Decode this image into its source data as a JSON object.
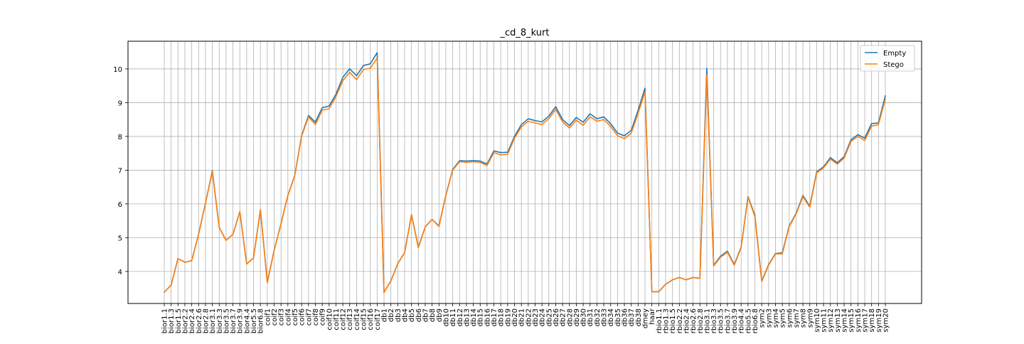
{
  "chart_data": {
    "type": "line",
    "title": "_cd_8_kurt",
    "xlabel": "",
    "ylabel": "",
    "ylim": [
      3.05,
      10.82
    ],
    "yticks": [
      4,
      5,
      6,
      7,
      8,
      9,
      10
    ],
    "grid": true,
    "legend_position": "top-right",
    "categories": [
      "bior1.1",
      "bior1.3",
      "bior1.5",
      "bior2.2",
      "bior2.4",
      "bior2.6",
      "bior2.8",
      "bior3.1",
      "bior3.3",
      "bior3.5",
      "bior3.7",
      "bior3.9",
      "bior4.4",
      "bior5.5",
      "bior6.8",
      "coif1",
      "coif2",
      "coif3",
      "coif4",
      "coif5",
      "coif6",
      "coif7",
      "coif8",
      "coif9",
      "coif10",
      "coif11",
      "coif12",
      "coif13",
      "coif14",
      "coif15",
      "coif16",
      "coif17",
      "db1",
      "db2",
      "db3",
      "db4",
      "db5",
      "db6",
      "db7",
      "db8",
      "db9",
      "db10",
      "db11",
      "db12",
      "db13",
      "db14",
      "db15",
      "db16",
      "db17",
      "db18",
      "db19",
      "db20",
      "db21",
      "db22",
      "db23",
      "db24",
      "db25",
      "db26",
      "db27",
      "db28",
      "db29",
      "db30",
      "db31",
      "db32",
      "db33",
      "db34",
      "db35",
      "db36",
      "db37",
      "db38",
      "dmey",
      "haar",
      "rbio1.1",
      "rbio1.3",
      "rbio1.5",
      "rbio2.2",
      "rbio2.4",
      "rbio2.6",
      "rbio2.8",
      "rbio3.1",
      "rbio3.3",
      "rbio3.5",
      "rbio3.7",
      "rbio3.9",
      "rbio4.4",
      "rbio5.5",
      "rbio6.8",
      "sym2",
      "sym3",
      "sym4",
      "sym5",
      "sym6",
      "sym7",
      "sym8",
      "sym9",
      "sym10",
      "sym11",
      "sym12",
      "sym13",
      "sym14",
      "sym15",
      "sym16",
      "sym17",
      "sym18",
      "sym19",
      "sym20"
    ],
    "series": [
      {
        "name": "Empty",
        "color": "#1f77b4",
        "values": [
          3.38,
          3.6,
          4.38,
          4.27,
          4.32,
          5.1,
          6.02,
          6.98,
          5.3,
          4.92,
          5.1,
          5.77,
          4.22,
          4.4,
          5.83,
          3.68,
          4.62,
          5.42,
          6.25,
          6.84,
          8.02,
          8.62,
          8.42,
          8.85,
          8.9,
          9.25,
          9.75,
          10.0,
          9.8,
          10.1,
          10.15,
          10.48,
          3.38,
          3.72,
          4.23,
          4.56,
          5.68,
          4.72,
          5.32,
          5.54,
          5.35,
          6.25,
          7.02,
          7.28,
          7.27,
          7.28,
          7.27,
          7.18,
          7.57,
          7.52,
          7.53,
          8.0,
          8.35,
          8.52,
          8.47,
          8.43,
          8.6,
          8.88,
          8.5,
          8.32,
          8.56,
          8.42,
          8.67,
          8.52,
          8.58,
          8.38,
          8.1,
          8.02,
          8.18,
          8.77,
          9.43,
          3.4,
          3.4,
          3.62,
          3.75,
          3.82,
          3.75,
          3.82,
          3.8,
          10.02,
          4.18,
          4.45,
          4.6,
          4.2,
          4.72,
          6.22,
          5.67,
          3.72,
          4.2,
          4.53,
          4.55,
          5.35,
          5.72,
          6.25,
          5.93,
          6.95,
          7.1,
          7.37,
          7.22,
          7.4,
          7.9,
          8.05,
          7.95,
          8.38,
          8.4,
          9.2
        ]
      },
      {
        "name": "Stego",
        "color": "#ff7f0e",
        "values": [
          3.38,
          3.6,
          4.38,
          4.27,
          4.32,
          5.1,
          6.02,
          6.95,
          5.3,
          4.92,
          5.1,
          5.77,
          4.22,
          4.4,
          5.83,
          3.66,
          4.62,
          5.42,
          6.25,
          6.84,
          8.0,
          8.58,
          8.35,
          8.78,
          8.82,
          9.18,
          9.65,
          9.9,
          9.68,
          9.98,
          10.02,
          10.32,
          3.38,
          3.72,
          4.23,
          4.56,
          5.68,
          4.7,
          5.32,
          5.54,
          5.33,
          6.25,
          7.0,
          7.25,
          7.23,
          7.25,
          7.23,
          7.14,
          7.52,
          7.45,
          7.47,
          7.95,
          8.28,
          8.45,
          8.4,
          8.35,
          8.53,
          8.8,
          8.43,
          8.25,
          8.48,
          8.33,
          8.58,
          8.45,
          8.5,
          8.3,
          8.02,
          7.93,
          8.1,
          8.68,
          9.32,
          3.4,
          3.4,
          3.62,
          3.75,
          3.82,
          3.75,
          3.82,
          3.8,
          9.83,
          4.16,
          4.42,
          4.57,
          4.18,
          4.7,
          6.2,
          5.63,
          3.7,
          4.18,
          4.52,
          4.52,
          5.33,
          5.7,
          6.22,
          5.9,
          6.92,
          7.07,
          7.33,
          7.18,
          7.36,
          7.85,
          8.0,
          7.88,
          8.3,
          8.35,
          9.1
        ]
      }
    ]
  }
}
